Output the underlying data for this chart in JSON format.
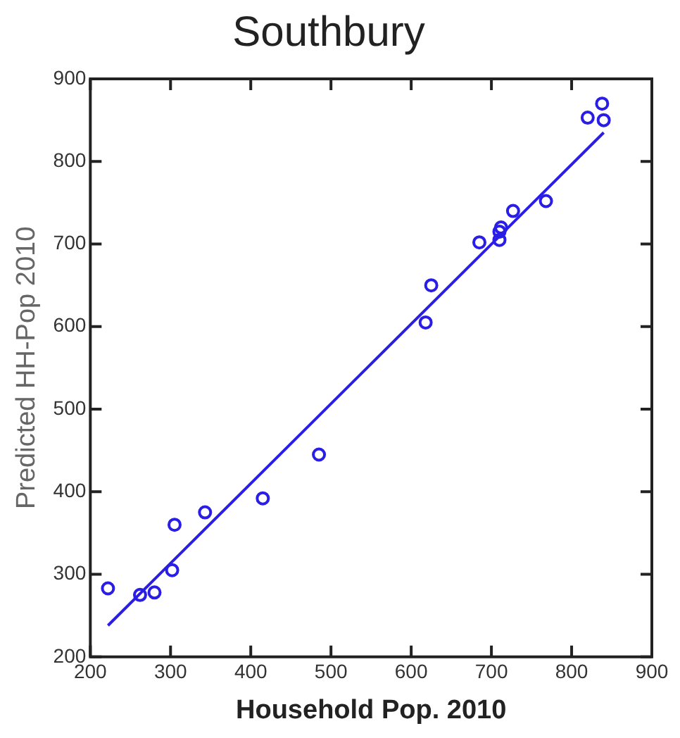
{
  "chart_data": {
    "type": "scatter",
    "title": "Southbury",
    "xlabel": "Household Pop. 2010",
    "ylabel": "Predicted HH-Pop 2010",
    "xlim": [
      200,
      900
    ],
    "xticks": [
      200,
      300,
      400,
      500,
      600,
      700,
      800,
      900
    ],
    "ylim": [
      200,
      900
    ],
    "yticks": [
      200,
      300,
      400,
      500,
      600,
      700,
      800,
      900
    ],
    "grid": false,
    "legend": false,
    "series": [
      {
        "marker": "circle",
        "color": "#2a1ee6",
        "x": [
          222,
          262,
          280,
          302,
          305,
          343,
          415,
          485,
          618,
          625,
          685,
          710,
          710,
          712,
          727,
          768,
          820,
          838,
          840
        ],
        "values": [
          283,
          275,
          278,
          305,
          360,
          375,
          392,
          445,
          605,
          650,
          702,
          705,
          715,
          720,
          740,
          752,
          853,
          870,
          850
        ]
      },
      {
        "type": "line",
        "marker": "none",
        "color": "#2a1ee6",
        "x": [
          222,
          840
        ],
        "values": [
          238,
          835
        ]
      }
    ]
  }
}
